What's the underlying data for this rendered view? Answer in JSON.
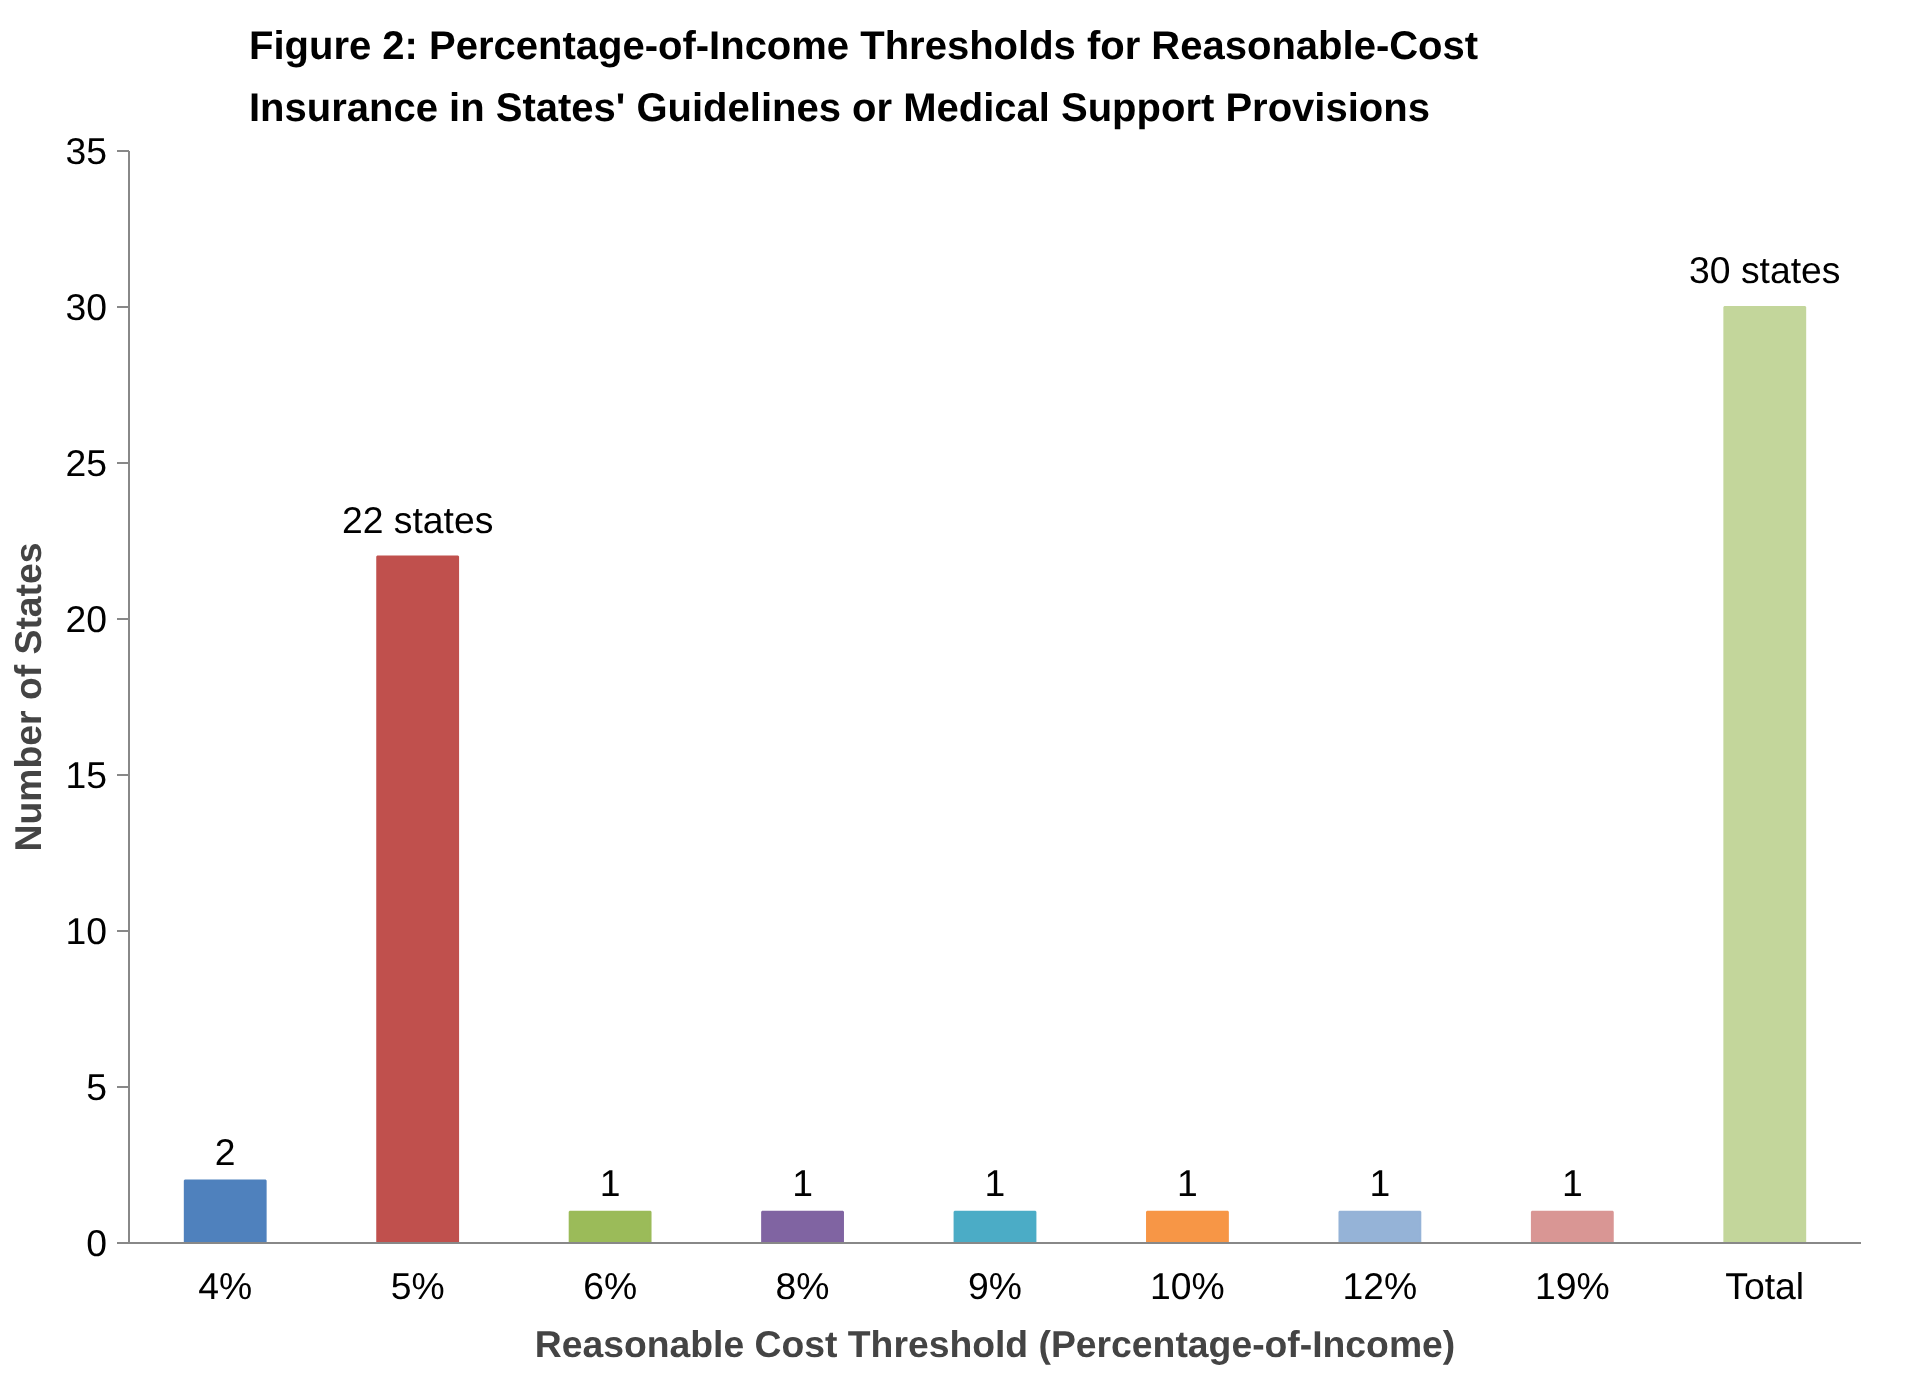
{
  "chart_data": {
    "type": "bar",
    "title": "Figure 2:  Percentage-of-Income Thresholds for Reasonable-Cost\nInsurance in States' Guidelines or Medical Support Provisions",
    "xlabel": "Reasonable Cost Threshold (Percentage-of-Income)",
    "ylabel": "Number of States",
    "categories": [
      "4%",
      "5%",
      "6%",
      "8%",
      "9%",
      "10%",
      "12%",
      "19%",
      "Total"
    ],
    "values": [
      2,
      22,
      1,
      1,
      1,
      1,
      1,
      1,
      30
    ],
    "colors": [
      "#4f81bd",
      "#c0504d",
      "#9bbb59",
      "#8064a2",
      "#4bacc6",
      "#f79646",
      "#95b3d7",
      "#d99694",
      "#c3d69b"
    ],
    "value_labels": [
      "2",
      "22 states",
      "1",
      "1",
      "1",
      "1",
      "1",
      "1",
      "30 states"
    ],
    "ylim": [
      0,
      35
    ],
    "yticks": [
      0,
      5,
      10,
      15,
      20,
      25,
      30,
      35
    ],
    "grid": false
  }
}
